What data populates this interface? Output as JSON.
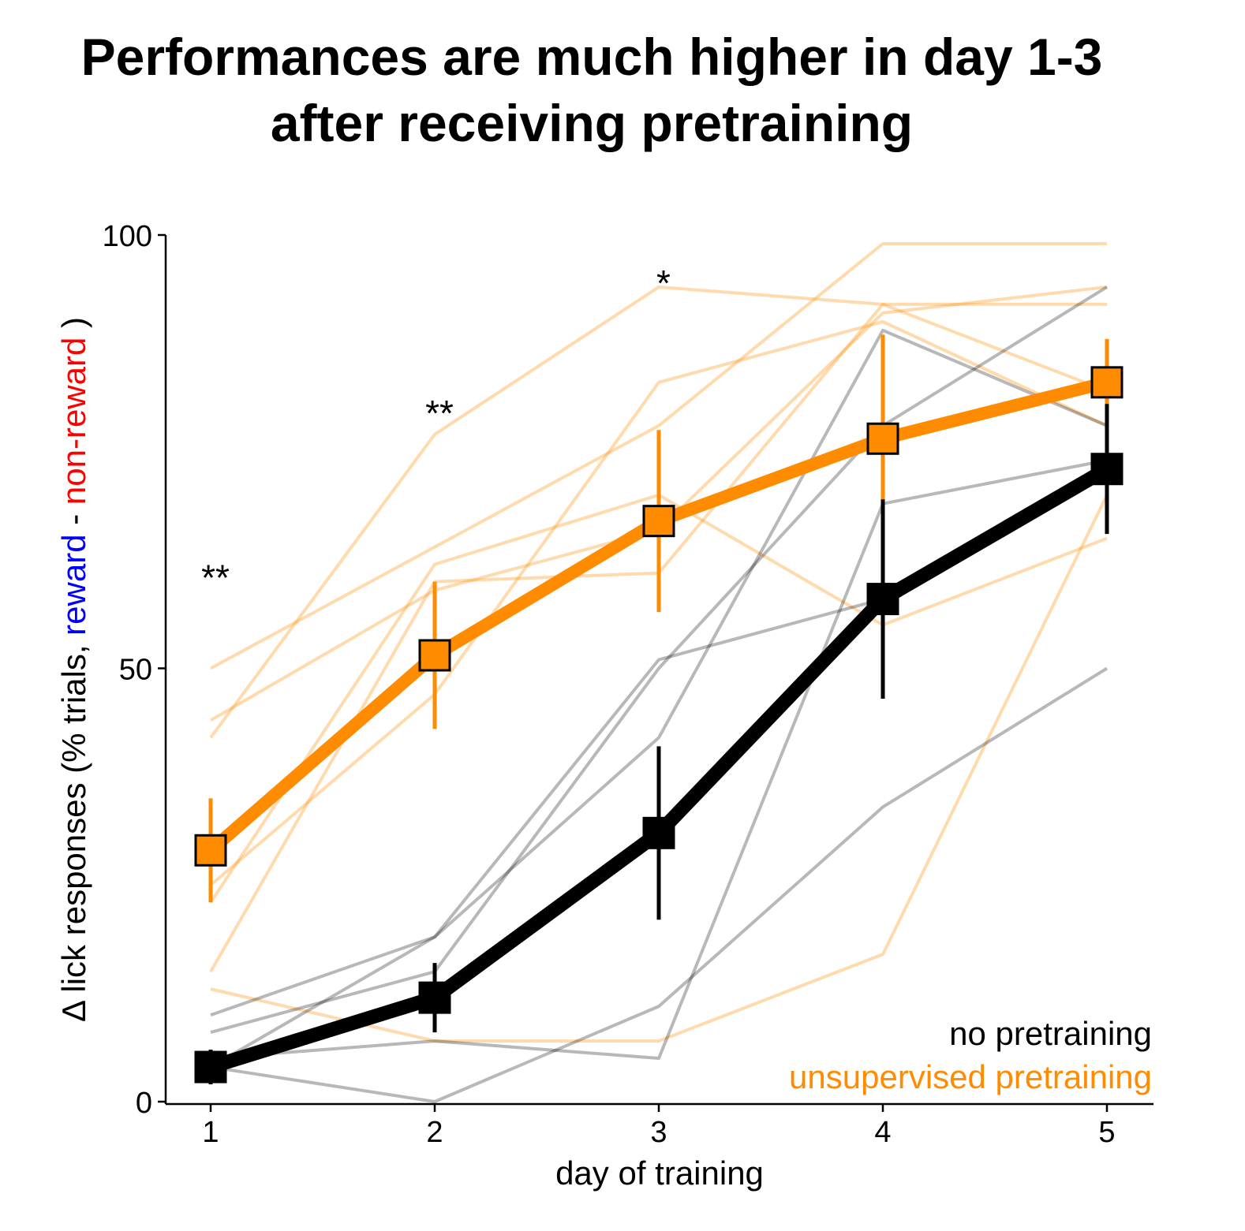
{
  "chart_data": {
    "type": "line",
    "title_lines": [
      "Performances are much higher in day 1-3",
      "after receiving pretraining"
    ],
    "xlabel": "day of training",
    "ylabel_parts": [
      {
        "text": "Δ lick responses (% trials, ",
        "color": "#000000"
      },
      {
        "text": "reward",
        "color": "#0000ff"
      },
      {
        "text": " - ",
        "color": "#000000"
      },
      {
        "text": "non-reward",
        "color": "#ff0000"
      },
      {
        "text": " )",
        "color": "#000000"
      }
    ],
    "x": [
      1,
      2,
      3,
      4,
      5
    ],
    "x_ticks": [
      "1",
      "2",
      "3",
      "4",
      "5"
    ],
    "y_ticks": [
      "0",
      "50",
      "100"
    ],
    "y_tick_values": [
      0,
      50,
      100
    ],
    "ylim": [
      0,
      100
    ],
    "xlim": [
      0.8,
      5.2
    ],
    "grid": false,
    "legend_position": "bottom-right",
    "series": [
      {
        "name": "no pretraining",
        "color": "#000000",
        "marker": "square",
        "mean": [
          4,
          12,
          31,
          58,
          73
        ],
        "err": [
          2,
          4,
          10,
          11.5,
          7.5
        ],
        "individual": [
          [
            4,
            0,
            11,
            34,
            50
          ],
          [
            5,
            7,
            5,
            69,
            74
          ],
          [
            8,
            15,
            50,
            78,
            94
          ],
          [
            4,
            19,
            51,
            58,
            73
          ],
          [
            10,
            19,
            42,
            89,
            78
          ]
        ]
      },
      {
        "name": "unsupervised pretraining",
        "color": "#ff8c00",
        "marker": "square",
        "mean": [
          29,
          51.5,
          67,
          76.5,
          83
        ],
        "err": [
          6,
          8.5,
          10.5,
          12,
          5
        ],
        "individual": [
          [
            50,
            64,
            78,
            99,
            99
          ],
          [
            42,
            77,
            94,
            92,
            92
          ],
          [
            44,
            59,
            66,
            91,
            94
          ],
          [
            25,
            47,
            83,
            90,
            78
          ],
          [
            23,
            62,
            70,
            55,
            65
          ],
          [
            15,
            60,
            61,
            92,
            82
          ],
          [
            13,
            7,
            7,
            17,
            70
          ]
        ]
      }
    ],
    "annotations": [
      {
        "x": 1,
        "y": 61,
        "text": "**"
      },
      {
        "x": 2,
        "y": 80,
        "text": "**"
      },
      {
        "x": 3,
        "y": 95,
        "text": "*"
      }
    ]
  }
}
